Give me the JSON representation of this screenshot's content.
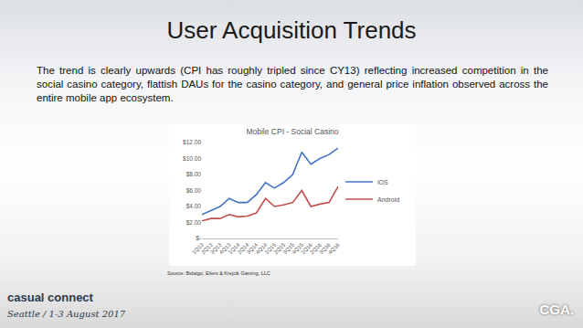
{
  "slide": {
    "title": "User Acquisition Trends",
    "text": "The trend is clearly upwards (CPI has roughly tripled since CY13) reflecting increased competition in the social casino category, flattish DAUs for the casino category, and general price inflation observed across the entire mobile app ecosystem.",
    "source": "Source: Bidalgo, Eilers & Krejcik Gaming, LLC",
    "footer": [
      "casual connect",
      "Seattle / 1-3 August 2017",
      "CGA."
    ]
  },
  "chart_data": {
    "type": "line",
    "title": "Mobile CPI - Social Casino",
    "categories": [
      "1Q13",
      "2Q13",
      "3Q13",
      "4Q13",
      "1Q14",
      "2Q14",
      "3Q14",
      "4Q14",
      "1Q15",
      "2Q15",
      "3Q15",
      "4Q15",
      "1Q16",
      "2Q16",
      "3Q16",
      "4Q16"
    ],
    "series": [
      {
        "name": "iOS",
        "color": "#4472c4",
        "values": [
          3.0,
          3.5,
          4.0,
          5.0,
          4.5,
          4.5,
          5.5,
          7.0,
          6.3,
          7.0,
          8.0,
          10.8,
          9.3,
          10.0,
          10.5,
          11.3
        ]
      },
      {
        "name": "Android",
        "color": "#c0504d",
        "values": [
          2.2,
          2.5,
          2.5,
          3.0,
          2.7,
          2.8,
          3.2,
          5.0,
          4.0,
          4.2,
          4.5,
          6.0,
          4.0,
          4.3,
          4.5,
          6.5
        ]
      }
    ],
    "ylim": [
      0,
      12
    ],
    "yticks": [
      {
        "value": 0,
        "label": "$-"
      },
      {
        "value": 2,
        "label": "$2.00"
      },
      {
        "value": 4,
        "label": "$4.00"
      },
      {
        "value": 6,
        "label": "$6.00"
      },
      {
        "value": 8,
        "label": "$8.00"
      },
      {
        "value": 10,
        "label": "$10.00"
      },
      {
        "value": 12,
        "label": "$12.00"
      }
    ],
    "grid": false,
    "legend": "right"
  }
}
